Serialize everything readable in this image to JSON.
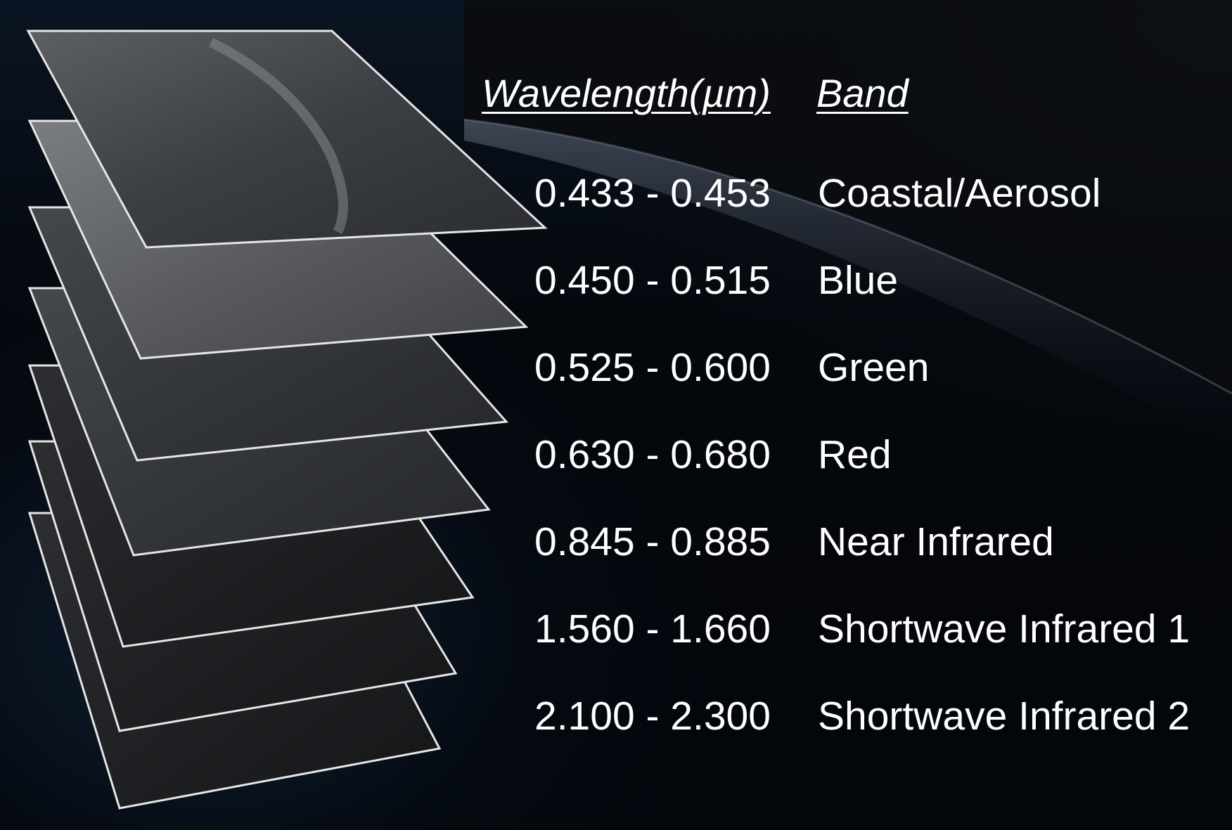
{
  "header": {
    "wavelength_label": "Wavelength(µm)",
    "band_label": "Band"
  },
  "bands": [
    {
      "wavelength": "0.433 - 0.453",
      "name": "Coastal/Aerosol"
    },
    {
      "wavelength": "0.450 - 0.515",
      "name": "Blue"
    },
    {
      "wavelength": "0.525 - 0.600",
      "name": "Green"
    },
    {
      "wavelength": "0.630 - 0.680",
      "name": "Red"
    },
    {
      "wavelength": "0.845 - 0.885",
      "name": "Near Infrared"
    },
    {
      "wavelength": "1.560 - 1.660",
      "name": "Shortwave Infrared 1"
    },
    {
      "wavelength": "2.100 - 2.300",
      "name": "Shortwave Infrared 2"
    }
  ],
  "colors": {
    "text": "#ffffff",
    "layer_outline": "#e6e6e6",
    "background": "#05080e"
  }
}
